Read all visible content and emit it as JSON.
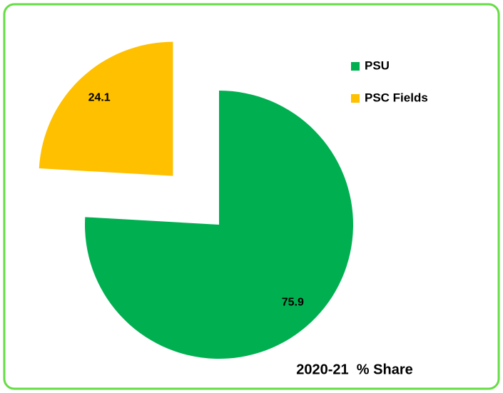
{
  "chart_data": {
    "type": "pie",
    "title": "2020-21  % Share",
    "categories": [
      "PSU",
      "PSC Fields"
    ],
    "values": [
      75.9,
      24.1
    ],
    "colors": [
      "#00b050",
      "#ffc000"
    ],
    "legend": "top-right"
  }
}
